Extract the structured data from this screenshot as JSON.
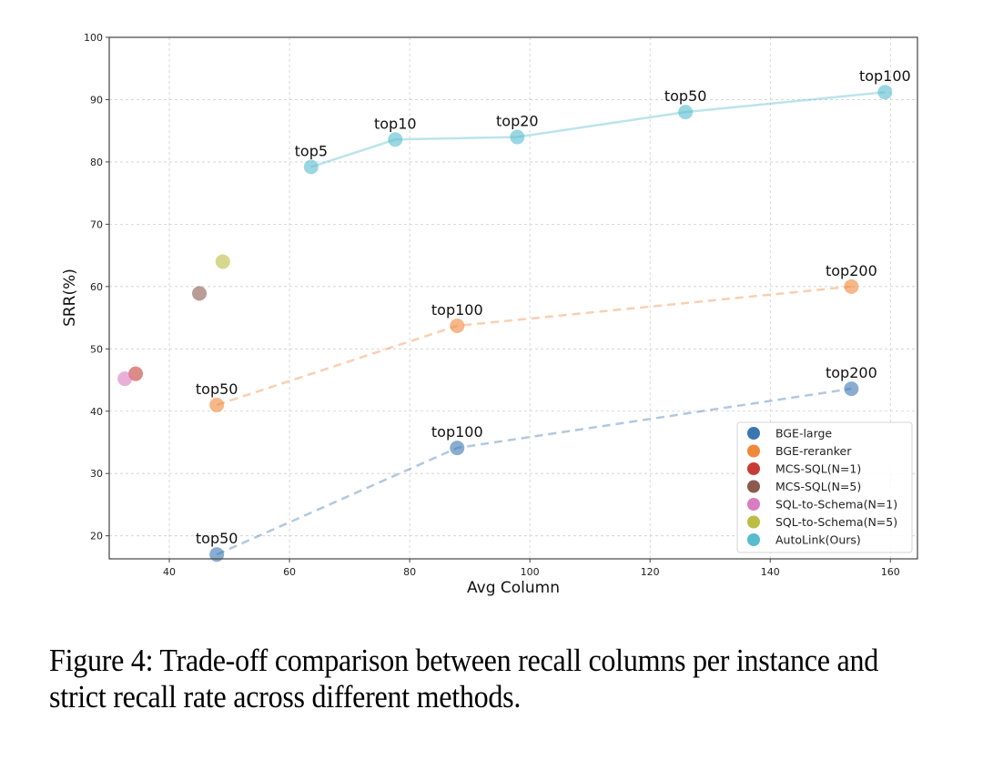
{
  "caption": "Figure 4: Trade-off comparison between recall columns per instance and strict recall rate across different methods.",
  "chart_data": {
    "type": "scatter",
    "title": "",
    "xlabel": "Avg Column",
    "ylabel": "SRR(%)",
    "xlim": [
      30,
      164.5
    ],
    "ylim": [
      16.3,
      100
    ],
    "xticks": [
      40,
      60,
      80,
      100,
      120,
      140,
      160
    ],
    "yticks": [
      20,
      30,
      40,
      50,
      60,
      70,
      80,
      90,
      100
    ],
    "grid": true,
    "legend_position": "bottom-right",
    "series": [
      {
        "name": "BGE-large",
        "color": "#3b76b1",
        "line": "dashed",
        "points": [
          {
            "x": 47.9,
            "y": 17.0,
            "label": "top50"
          },
          {
            "x": 87.9,
            "y": 34.1,
            "label": "top100"
          },
          {
            "x": 153.5,
            "y": 43.6,
            "label": "top200"
          }
        ]
      },
      {
        "name": "BGE-reranker",
        "color": "#f0883a",
        "line": "dashed",
        "points": [
          {
            "x": 47.9,
            "y": 41.0,
            "label": "top50"
          },
          {
            "x": 87.9,
            "y": 53.7,
            "label": "top100"
          },
          {
            "x": 153.5,
            "y": 60.0,
            "label": "top200"
          }
        ]
      },
      {
        "name": "MCS-SQL(N=1)",
        "color": "#c73d35",
        "line": "none",
        "points": [
          {
            "x": 34.4,
            "y": 46.0,
            "label": ""
          }
        ]
      },
      {
        "name": "MCS-SQL(N=5)",
        "color": "#8b5a4f",
        "line": "none",
        "points": [
          {
            "x": 45.0,
            "y": 58.9,
            "label": ""
          }
        ]
      },
      {
        "name": "SQL-to-Schema(N=1)",
        "color": "#d97cc0",
        "line": "none",
        "points": [
          {
            "x": 32.6,
            "y": 45.2,
            "label": ""
          }
        ]
      },
      {
        "name": "SQL-to-Schema(N=5)",
        "color": "#bcbd45",
        "line": "none",
        "points": [
          {
            "x": 48.9,
            "y": 64.0,
            "label": ""
          }
        ]
      },
      {
        "name": "AutoLink(Ours)",
        "color": "#56bccf",
        "line": "solid",
        "points": [
          {
            "x": 63.6,
            "y": 79.2,
            "label": "top5"
          },
          {
            "x": 77.6,
            "y": 83.6,
            "label": "top10"
          },
          {
            "x": 97.9,
            "y": 84.0,
            "label": "top20"
          },
          {
            "x": 125.9,
            "y": 88.0,
            "label": "top50"
          },
          {
            "x": 159.1,
            "y": 91.2,
            "label": "top100"
          }
        ]
      }
    ]
  }
}
